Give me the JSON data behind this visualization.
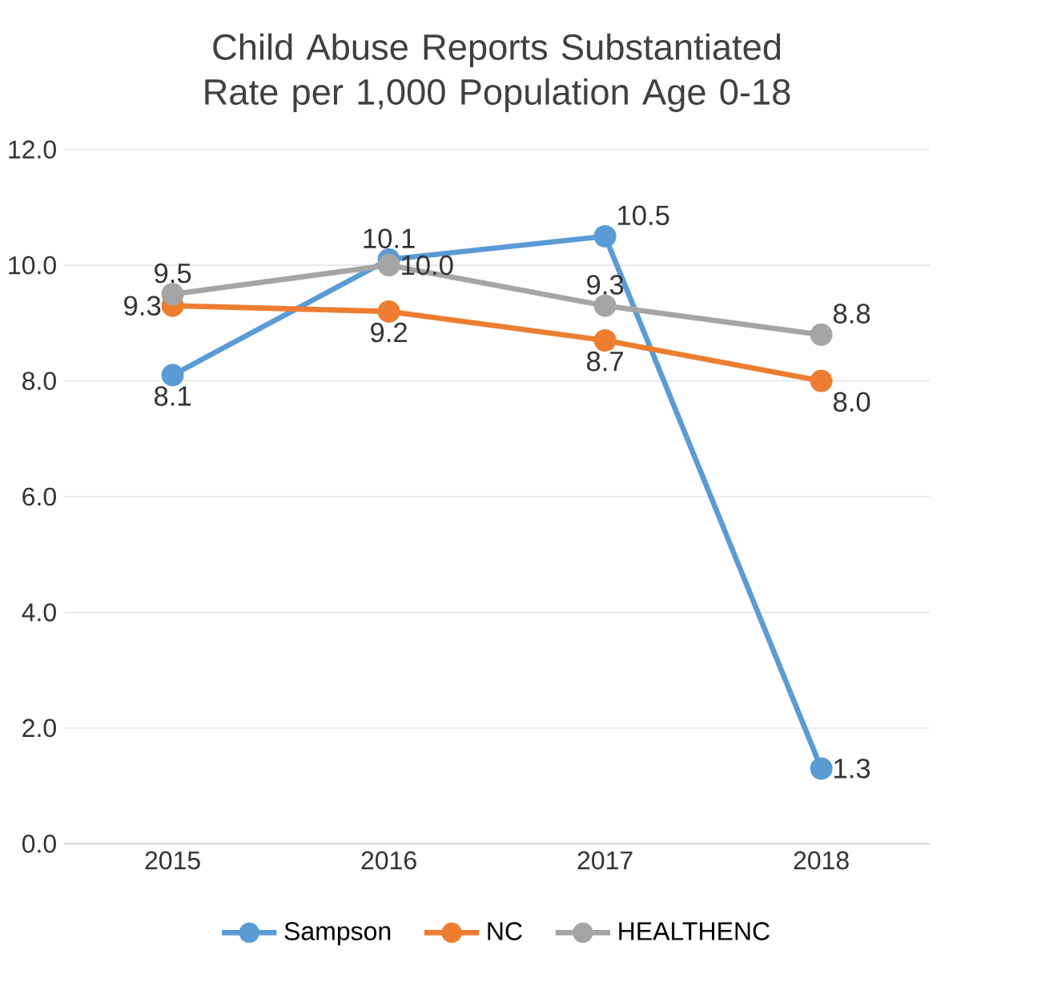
{
  "chart_data": {
    "type": "line",
    "title": "Child Abuse Reports Substantiated Rate per 1,000 Population Age 0-18",
    "categories": [
      "2015",
      "2016",
      "2017",
      "2018"
    ],
    "series": [
      {
        "name": "Sampson",
        "color": "#5b9bd5",
        "values": [
          8.1,
          10.1,
          10.5,
          1.3
        ],
        "value_labels": [
          "8.1",
          "10.1",
          "10.5",
          "1.3"
        ]
      },
      {
        "name": "NC",
        "color": "#ed7d31",
        "values": [
          9.3,
          9.2,
          8.7,
          8.0
        ],
        "value_labels": [
          "9.3",
          "9.2",
          "8.7",
          "8.0"
        ]
      },
      {
        "name": "HEALTHENC",
        "color": "#a5a5a5",
        "values": [
          9.5,
          10.0,
          9.3,
          8.8
        ],
        "value_labels": [
          "9.5",
          "10.0",
          "9.3",
          "8.8"
        ]
      }
    ],
    "ylim": [
      0,
      12
    ],
    "yticks": [
      {
        "value": 0,
        "label": "0.0"
      },
      {
        "value": 2,
        "label": "2.0"
      },
      {
        "value": 4,
        "label": "4.0"
      },
      {
        "value": 6,
        "label": "6.0"
      },
      {
        "value": 8,
        "label": "8.0"
      },
      {
        "value": 10,
        "label": "10.0"
      },
      {
        "value": 12,
        "label": "12.0"
      }
    ],
    "grid": "y",
    "legend": "bottom",
    "marker": "circle",
    "line_style": "solid"
  }
}
